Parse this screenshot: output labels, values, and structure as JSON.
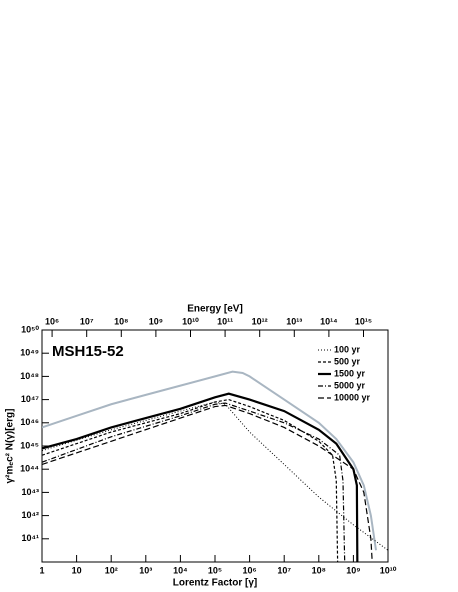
{
  "chart_data": {
    "type": "line",
    "annotation": "MSH15-52",
    "xlabel": "Lorentz Factor [γ]",
    "x2label": "Energy [eV]",
    "ylabel": "γ²mₑc² N(γ)[erg]",
    "xscale": "log",
    "yscale": "log",
    "x2scale": "log",
    "xlim": [
      1,
      10000000000.0
    ],
    "xticks": [
      1,
      10,
      {
        "value": 100,
        "label": "10²"
      },
      {
        "value": 1000.0,
        "label": "10³"
      },
      {
        "value": 10000.0,
        "label": "10⁴"
      },
      {
        "value": 100000.0,
        "label": "10⁵"
      },
      {
        "value": 1000000.0,
        "label": "10⁶"
      },
      {
        "value": 10000000.0,
        "label": "10⁷"
      },
      {
        "value": 100000000.0,
        "label": "10⁸"
      },
      {
        "value": 1000000000.0,
        "label": "10⁹"
      },
      {
        "value": 10000000000.0,
        "label": "10¹⁰"
      }
    ],
    "x2lim": [
      511000,
      5110000000000000.0
    ],
    "x2ticks": [
      {
        "value": 1000000.0,
        "label": "10⁶"
      },
      {
        "value": 10000000.0,
        "label": "10⁷"
      },
      {
        "value": 100000000.0,
        "label": "10⁸"
      },
      {
        "value": 1000000000.0,
        "label": "10⁹"
      },
      {
        "value": 10000000000.0,
        "label": "10¹⁰"
      },
      {
        "value": 100000000000.0,
        "label": "10¹¹"
      },
      {
        "value": 1000000000000.0,
        "label": "10¹²"
      },
      {
        "value": 10000000000000.0,
        "label": "10¹³"
      },
      {
        "value": 100000000000000.0,
        "label": "10¹⁴"
      },
      {
        "value": 1000000000000000.0,
        "label": "10¹⁵"
      }
    ],
    "ylim": [
      1e+40,
      1e+50
    ],
    "yticks": [
      {
        "value": 1e+41,
        "label": "10⁴¹"
      },
      {
        "value": 1e+42,
        "label": "10⁴²"
      },
      {
        "value": 1e+43,
        "label": "10⁴³"
      },
      {
        "value": 1e+44,
        "label": "10⁴⁴"
      },
      {
        "value": 1e+45,
        "label": "10⁴⁵"
      },
      {
        "value": 1e+46,
        "label": "10⁴⁶"
      },
      {
        "value": 1e+47,
        "label": "10⁴⁷"
      },
      {
        "value": 1e+48,
        "label": "10⁴⁸"
      },
      {
        "value": 1e+49,
        "label": "10⁴⁹"
      },
      {
        "value": 1e+50,
        "label": "10⁵⁰"
      }
    ],
    "legend": "upper right",
    "series": [
      {
        "color": "#a9b6c2",
        "width": 2,
        "dash": "none",
        "x": [
          1,
          10,
          100,
          1000.0,
          10000.0,
          100000.0,
          320000.0,
          630000.0,
          1000000.0,
          10000000.0,
          100000000.0,
          320000000.0,
          1000000000.0,
          2000000000.0,
          3200000000.0,
          4500000000.0
        ],
        "values": [
          6.3e+45,
          2e+46,
          6.3e+46,
          1.6e+47,
          4e+47,
          1e+48,
          1.6e+48,
          1.4e+48,
          1e+48,
          1e+47,
          1e+46,
          2e+45,
          2e+44,
          2e+43,
          1e+42,
          3.2e+40
        ]
      },
      {
        "name": "100 yr",
        "color": "#000000",
        "width": 1,
        "dash": "1,2",
        "x": [
          1,
          100,
          10000.0,
          100000.0,
          200000.0,
          1000000.0,
          10000000.0,
          100000000.0,
          1000000000.0,
          10000000000.0
        ],
        "values": [
          6.3e+44,
          5e+45,
          3.2e+46,
          7.9e+46,
          6.3e+46,
          4e+45,
          1.6e+44,
          6.3e+42,
          4e+41,
          3.2e+40
        ]
      },
      {
        "name": "500 yr",
        "color": "#000000",
        "width": 1.2,
        "dash": "3,2",
        "x": [
          1,
          100,
          10000.0,
          100000.0,
          250000.0,
          1000000.0,
          10000000.0,
          100000000.0,
          250000000.0,
          320000000.0,
          350000000.0
        ],
        "values": [
          4e+44,
          4e+45,
          2.5e+46,
          7.9e+46,
          1e+47,
          5e+46,
          1.26e+46,
          1.6e+45,
          4e+44,
          3.2e+43,
          1e+40
        ]
      },
      {
        "name": "1500 yr",
        "color": "#000000",
        "width": 2.2,
        "dash": "none",
        "x": [
          1,
          10,
          100,
          1000.0,
          10000.0,
          100000.0,
          250000.0,
          1000000.0,
          10000000.0,
          100000000.0,
          320000000.0,
          1000000000.0,
          1260000000.0,
          1300000000.0
        ],
        "values": [
          7.9e+44,
          2e+45,
          6.3e+45,
          1.6e+46,
          4e+46,
          1.26e+47,
          1.8e+47,
          1e+47,
          3.2e+46,
          5e+45,
          1.26e+45,
          1e+44,
          2e+43,
          1e+40
        ]
      },
      {
        "name": "5000 yr",
        "color": "#000000",
        "width": 1.2,
        "dash": "5,2,1,2",
        "x": [
          1,
          100,
          10000.0,
          100000.0,
          200000.0,
          1000000.0,
          10000000.0,
          100000000.0,
          400000000.0,
          500000000.0,
          560000000.0
        ],
        "values": [
          2e+44,
          2.5e+45,
          2e+46,
          6.3e+46,
          7.1e+46,
          3.2e+46,
          1e+46,
          2e+45,
          4e+44,
          3.2e+43,
          1e+40
        ]
      },
      {
        "name": "10000 yr",
        "color": "#000000",
        "width": 1.2,
        "dash": "6,3",
        "x": [
          1,
          100,
          10000.0,
          100000.0,
          200000.0,
          1000000.0,
          10000000.0,
          100000000.0,
          1000000000.0,
          2000000000.0,
          3200000000.0,
          3500000000.0
        ],
        "values": [
          1.6e+44,
          1.6e+45,
          1.6e+46,
          5e+46,
          5.6e+46,
          2.5e+46,
          6.3e+45,
          1e+45,
          1e+44,
          1e+43,
          1e+41,
          1e+40
        ]
      }
    ]
  }
}
